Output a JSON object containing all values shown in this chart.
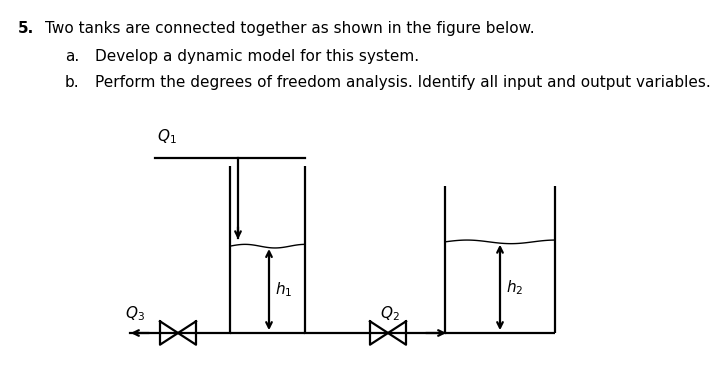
{
  "background_color": "#ffffff",
  "text_color": "#000000",
  "title_line1_num": "5.",
  "title_line1_text": "Two tanks are connected together as shown in the figure below.",
  "sub_a_letter": "a.",
  "sub_a_text": "Develop a dynamic model for this system.",
  "sub_b_letter": "b.",
  "sub_b_text": "Perform the degrees of freedom analysis. Identify all input and output variables.",
  "line_width": 1.6,
  "font_size_text": 11,
  "font_size_label": 11
}
